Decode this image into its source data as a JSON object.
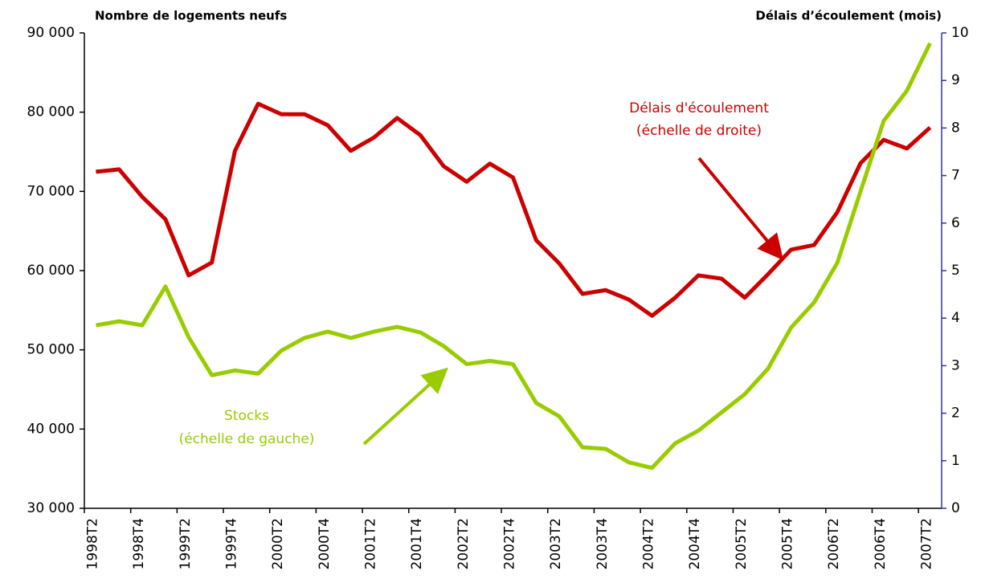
{
  "chart_data": {
    "type": "line",
    "ylabel": "Nombre de logements neufs",
    "y2label": "Délais d’écoulement (mois)",
    "categories": [
      "1998T2",
      null,
      "1998T4",
      null,
      "1999T2",
      null,
      "1999T4",
      null,
      "2000T2",
      null,
      "2000T4",
      null,
      "2001T2",
      null,
      "2001T4",
      null,
      "2002T2",
      null,
      "2002T4",
      null,
      "2003T2",
      null,
      "2003T4",
      null,
      "2004T2",
      null,
      "2004T4",
      null,
      "2005T2",
      null,
      "2005T4",
      null,
      "2006T2",
      null,
      "2006T4",
      null,
      "2007T2"
    ],
    "series": [
      {
        "name": "Délais d'écoulement",
        "color": "#cc0000",
        "axis": "y2",
        "values": [
          7.08,
          7.13,
          6.55,
          6.08,
          4.9,
          5.17,
          7.52,
          8.51,
          8.29,
          8.29,
          8.06,
          7.52,
          7.8,
          8.21,
          7.85,
          7.2,
          6.87,
          7.25,
          6.96,
          5.64,
          5.15,
          4.51,
          4.59,
          4.39,
          4.05,
          4.43,
          4.9,
          4.83,
          4.43,
          4.92,
          5.44,
          5.54,
          6.23,
          7.26,
          7.75,
          7.57,
          8.01
        ]
      },
      {
        "name": "Stocks",
        "color": "#99cc00",
        "values": [
          53100,
          53600,
          53100,
          58000,
          51600,
          46800,
          47400,
          47000,
          49900,
          51500,
          52300,
          51500,
          52300,
          52900,
          52200,
          50500,
          48200,
          48600,
          48200,
          43300,
          41600,
          37700,
          37500,
          35800,
          35100,
          38200,
          39800,
          42100,
          44400,
          47600,
          52800,
          56000,
          61000,
          70000,
          78900,
          82700,
          88700
        ]
      }
    ],
    "annotations": [
      "(échelle de droite)",
      "(échelle de gauche)"
    ],
    "ylim": [
      30000,
      90000
    ],
    "yticks": [
      {
        "value": 30000,
        "label": "30 000"
      },
      {
        "value": 40000,
        "label": "40 000"
      },
      {
        "value": 50000,
        "label": "50 000"
      },
      {
        "value": 60000,
        "label": "60 000"
      },
      {
        "value": 70000,
        "label": "70 000"
      },
      {
        "value": 80000,
        "label": "80 000"
      },
      {
        "value": 90000,
        "label": "90 000"
      }
    ],
    "y2lim": [
      0,
      10
    ],
    "y2ticks": [
      0,
      1,
      2,
      3,
      4,
      5,
      6,
      7,
      8,
      9,
      10
    ],
    "y2color": "#333399"
  }
}
